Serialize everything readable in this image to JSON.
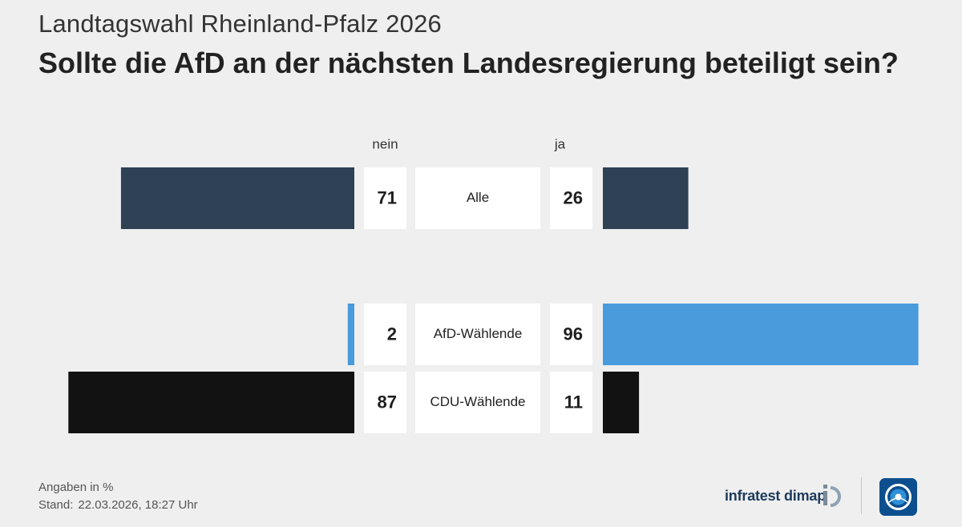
{
  "header": {
    "subtitle": "Landtagswahl Rheinland-Pfalz 2026",
    "title": "Sollte die AfD an der nächsten Landesregierung beteiligt sein?"
  },
  "chart_data": {
    "type": "bar",
    "orientation": "diverging-horizontal",
    "column_headers": {
      "left": "nein",
      "right": "ja"
    },
    "rows": [
      {
        "label": "Alle",
        "nein": 71,
        "ja": 26,
        "color": "#2e4155",
        "group": 0
      },
      {
        "label": "AfD-Wählende",
        "nein": 2,
        "ja": 96,
        "color": "#4a9bdb",
        "group": 1
      },
      {
        "label": "CDU-Wählende",
        "nein": 87,
        "ja": 11,
        "color": "#121212",
        "group": 1
      }
    ],
    "xlim": [
      0,
      100
    ]
  },
  "footer": {
    "unit_note": "Angaben in %",
    "stand_label": "Stand:",
    "stand_value": "22.03.2026, 18:27 Uhr",
    "brand": "infratest dimap"
  },
  "colors": {
    "background": "#efefef",
    "label_box": "#ffffff",
    "brand_blue": "#1d3a5c"
  },
  "icons": {
    "brand_mark": "infratest-dimap-logo-icon",
    "broadcaster_logo": "tagesschau-logo-icon"
  }
}
